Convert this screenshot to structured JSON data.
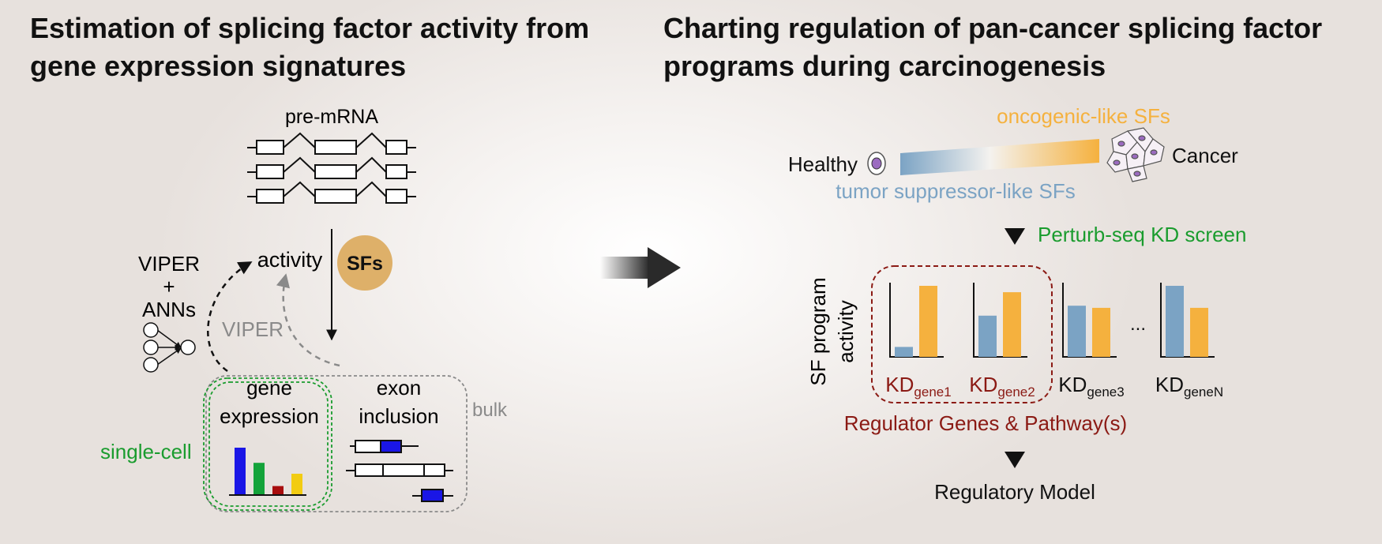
{
  "left_panel": {
    "title_line1": "Estimation of splicing factor activity from",
    "title_line2": "gene expression signatures",
    "pre_mrna_label": "pre-mRNA",
    "activity_label": "activity",
    "sfs_label": "SFs",
    "viper_anns_line1": "VIPER",
    "viper_anns_line2": "+",
    "viper_anns_line3": "ANNs",
    "viper_label": "VIPER",
    "gene_expression_line1": "gene",
    "gene_expression_line2": "expression",
    "exon_inclusion_line1": "exon",
    "exon_inclusion_line2": "inclusion",
    "bulk_label": "bulk",
    "single_cell_label": "single-cell",
    "expression_bar_levels": [
      1.0,
      0.68,
      0.19,
      0.45
    ]
  },
  "right_panel": {
    "title_line1": "Charting regulation of pan-cancer splicing factor",
    "title_line2": "programs during carcinogenesis",
    "oncogenic_label": "oncogenic-like SFs",
    "tumor_suppressor_label": "tumor suppressor-like SFs",
    "healthy_label": "Healthy",
    "cancer_label": "Cancer",
    "perturb_label": "Perturb-seq KD screen",
    "ylabel_line1": "SF program",
    "ylabel_line2": "activity",
    "kd_prefix": "KD",
    "kd_groups": [
      {
        "subscript": "gene1",
        "values": [
          0.14,
          1.0
        ]
      },
      {
        "subscript": "gene2",
        "values": [
          0.58,
          0.91
        ]
      },
      {
        "subscript": "gene3",
        "values": [
          0.72,
          0.69
        ]
      },
      {
        "subscript": "geneN",
        "values": [
          1.0,
          0.69
        ]
      }
    ],
    "ellipsis": "...",
    "regulator_label": "Regulator Genes & Pathway(s)",
    "model_label": "Regulatory Model"
  },
  "colors": {
    "blue_series": "#7ba3c4",
    "orange_series": "#f5b13e",
    "green": "#1a9c2e",
    "dark_red": "#8b1a14",
    "gray": "#8a8a8a",
    "sfs_circle": "#deb069",
    "expression_bars": [
      "#1a16e6",
      "#14a33a",
      "#a80d0d",
      "#f2cc12"
    ]
  }
}
